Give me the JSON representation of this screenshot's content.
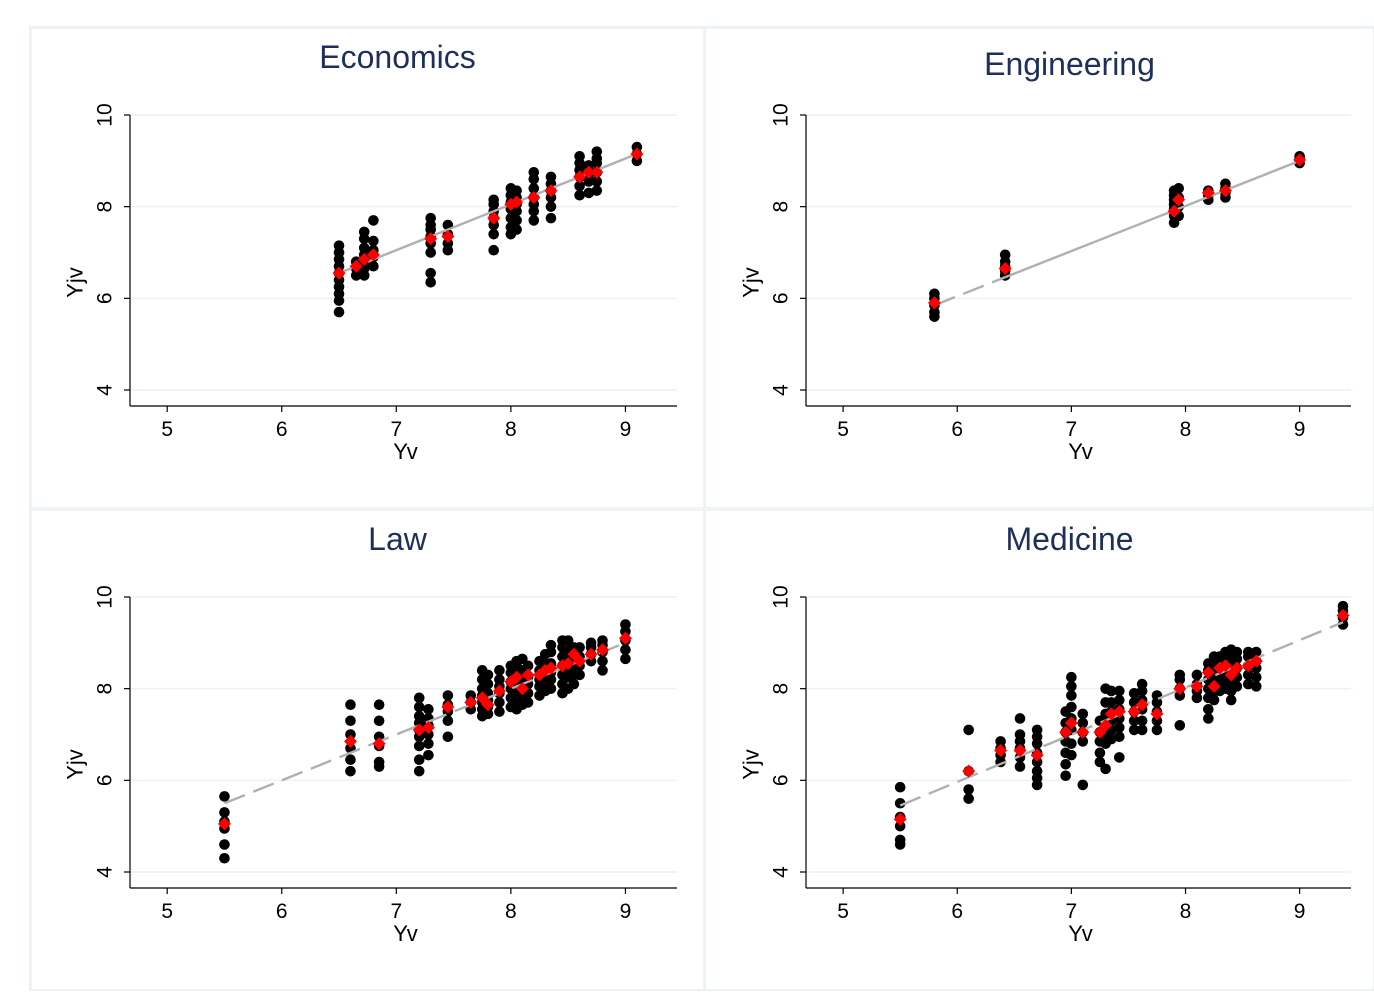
{
  "colors": {
    "page_bg": "#ffffff",
    "panel_border": "#eaf2f3",
    "title": "#1e2f5c",
    "axis": "#000000",
    "grid": "#eaf2f3",
    "observed_point": "#000000",
    "fitted_point": "#ff0000",
    "fit_line": "#b0b0b0"
  },
  "chart_data": [
    {
      "type": "scatter",
      "title": "Economics",
      "xlabel": "Yv",
      "ylabel": "Yjv",
      "xlim": [
        4.85,
        9.45
      ],
      "ylim": [
        3.6,
        10.4
      ],
      "xticks": [
        5,
        6,
        7,
        8,
        9
      ],
      "yticks": [
        4,
        6,
        8,
        10
      ],
      "grid": true,
      "fit_line": {
        "x": [
          6.5,
          9.1
        ],
        "y": [
          6.55,
          9.15
        ],
        "dashed_until": 6.9
      },
      "clusters": [
        {
          "x": 6.5,
          "y": [
            5.7,
            5.95,
            6.1,
            6.25,
            6.4,
            6.55,
            6.7,
            6.85,
            7.0,
            7.15
          ]
        },
        {
          "x": 6.65,
          "y": [
            6.5,
            6.65,
            6.8
          ]
        },
        {
          "x": 6.72,
          "y": [
            6.5,
            6.65,
            6.8,
            6.95,
            7.1,
            7.3,
            7.45
          ]
        },
        {
          "x": 6.8,
          "y": [
            6.7,
            6.9,
            7.05,
            7.25,
            7.7
          ]
        },
        {
          "x": 7.3,
          "y": [
            6.35,
            6.55,
            7.0,
            7.2,
            7.35,
            7.5,
            7.6,
            7.75
          ]
        },
        {
          "x": 7.45,
          "y": [
            7.05,
            7.2,
            7.4,
            7.6
          ]
        },
        {
          "x": 7.85,
          "y": [
            7.05,
            7.4,
            7.6,
            7.75,
            7.9,
            8.05,
            8.15
          ]
        },
        {
          "x": 8.0,
          "y": [
            7.4,
            7.55,
            7.75,
            7.95,
            8.1,
            8.25,
            8.4
          ]
        },
        {
          "x": 8.05,
          "y": [
            7.5,
            7.7,
            7.9,
            8.05,
            8.2,
            8.35
          ]
        },
        {
          "x": 8.2,
          "y": [
            7.7,
            7.9,
            8.05,
            8.2,
            8.4,
            8.6,
            8.75
          ]
        },
        {
          "x": 8.35,
          "y": [
            7.75,
            8.0,
            8.2,
            8.35,
            8.5,
            8.65
          ]
        },
        {
          "x": 8.6,
          "y": [
            8.25,
            8.45,
            8.65,
            8.8,
            8.95,
            9.1
          ]
        },
        {
          "x": 8.68,
          "y": [
            8.3,
            8.55,
            8.7,
            8.9
          ]
        },
        {
          "x": 8.75,
          "y": [
            8.35,
            8.55,
            8.75,
            8.95,
            9.05,
            9.2
          ]
        },
        {
          "x": 9.1,
          "y": [
            9.0,
            9.15,
            9.3
          ]
        }
      ],
      "fitted": [
        {
          "x": 6.5,
          "y": 6.55
        },
        {
          "x": 6.65,
          "y": 6.7
        },
        {
          "x": 6.72,
          "y": 6.85
        },
        {
          "x": 6.8,
          "y": 6.95
        },
        {
          "x": 7.3,
          "y": 7.3
        },
        {
          "x": 7.45,
          "y": 7.35
        },
        {
          "x": 7.85,
          "y": 7.75
        },
        {
          "x": 8.0,
          "y": 8.05
        },
        {
          "x": 8.05,
          "y": 8.1
        },
        {
          "x": 8.2,
          "y": 8.2
        },
        {
          "x": 8.35,
          "y": 8.35
        },
        {
          "x": 8.6,
          "y": 8.65
        },
        {
          "x": 8.68,
          "y": 8.75
        },
        {
          "x": 8.75,
          "y": 8.75
        },
        {
          "x": 9.1,
          "y": 9.15
        }
      ]
    },
    {
      "type": "scatter",
      "title": "Engineering",
      "xlabel": "Yv",
      "ylabel": "Yjv",
      "xlim": [
        4.85,
        9.45
      ],
      "ylim": [
        3.6,
        10.4
      ],
      "xticks": [
        5,
        6,
        7,
        8,
        9
      ],
      "yticks": [
        4,
        6,
        8,
        10
      ],
      "grid": true,
      "fit_line": {
        "x": [
          5.8,
          9.0
        ],
        "y": [
          5.85,
          9.0
        ],
        "dashed_until": 6.45
      },
      "clusters": [
        {
          "x": 5.8,
          "y": [
            5.6,
            5.7,
            5.85,
            6.0,
            6.1
          ]
        },
        {
          "x": 6.42,
          "y": [
            6.5,
            6.6,
            6.7,
            6.8,
            6.95
          ]
        },
        {
          "x": 7.9,
          "y": [
            7.65,
            7.8,
            7.95,
            8.05,
            8.15,
            8.25,
            8.35
          ]
        },
        {
          "x": 7.94,
          "y": [
            7.8,
            8.0,
            8.2,
            8.4
          ]
        },
        {
          "x": 8.2,
          "y": [
            8.15,
            8.25,
            8.35
          ]
        },
        {
          "x": 8.35,
          "y": [
            8.2,
            8.3,
            8.4,
            8.5
          ]
        },
        {
          "x": 9.0,
          "y": [
            8.95,
            9.05,
            9.1
          ]
        }
      ],
      "fitted": [
        {
          "x": 5.8,
          "y": 5.9
        },
        {
          "x": 6.42,
          "y": 6.65
        },
        {
          "x": 7.9,
          "y": 7.9
        },
        {
          "x": 7.94,
          "y": 8.15
        },
        {
          "x": 8.2,
          "y": 8.3
        },
        {
          "x": 8.35,
          "y": 8.35
        },
        {
          "x": 9.0,
          "y": 9.02
        }
      ]
    },
    {
      "type": "scatter",
      "title": "Law",
      "xlabel": "Yv",
      "ylabel": "Yjv",
      "xlim": [
        4.85,
        9.45
      ],
      "ylim": [
        3.6,
        10.4
      ],
      "xticks": [
        5,
        6,
        7,
        8,
        9
      ],
      "yticks": [
        4,
        6,
        8,
        10
      ],
      "grid": true,
      "fit_line": {
        "x": [
          5.5,
          9.0
        ],
        "y": [
          5.5,
          9.0
        ],
        "dashed_until": 9.0
      },
      "clusters": [
        {
          "x": 5.5,
          "y": [
            4.3,
            4.6,
            4.95,
            5.1,
            5.3,
            5.65
          ]
        },
        {
          "x": 6.6,
          "y": [
            6.2,
            6.45,
            6.7,
            7.0,
            7.3,
            7.65
          ]
        },
        {
          "x": 6.85,
          "y": [
            6.3,
            6.4,
            6.75,
            6.95,
            7.3,
            7.65
          ]
        },
        {
          "x": 7.2,
          "y": [
            6.2,
            6.45,
            6.75,
            6.95,
            7.1,
            7.25,
            7.4,
            7.6,
            7.8
          ]
        },
        {
          "x": 7.28,
          "y": [
            6.55,
            6.8,
            7.0,
            7.2,
            7.35,
            7.55
          ]
        },
        {
          "x": 7.45,
          "y": [
            6.95,
            7.3,
            7.5,
            7.65,
            7.85
          ]
        },
        {
          "x": 7.65,
          "y": [
            7.55,
            7.7,
            7.85
          ]
        },
        {
          "x": 7.75,
          "y": [
            7.4,
            7.55,
            7.7,
            7.85,
            8.0,
            8.2,
            8.4
          ]
        },
        {
          "x": 7.8,
          "y": [
            7.45,
            7.6,
            7.75,
            7.9,
            8.1,
            8.3
          ]
        },
        {
          "x": 7.9,
          "y": [
            7.5,
            7.7,
            7.9,
            8.05,
            8.2,
            8.4
          ]
        },
        {
          "x": 8.0,
          "y": [
            7.6,
            7.8,
            8.0,
            8.15,
            8.35,
            8.5
          ]
        },
        {
          "x": 8.05,
          "y": [
            7.55,
            7.75,
            7.9,
            8.1,
            8.3,
            8.5,
            8.6
          ]
        },
        {
          "x": 8.1,
          "y": [
            7.65,
            7.85,
            8.05,
            8.2,
            8.4,
            8.65
          ]
        },
        {
          "x": 8.15,
          "y": [
            7.7,
            7.9,
            8.1,
            8.25,
            8.5
          ]
        },
        {
          "x": 8.25,
          "y": [
            7.85,
            8.05,
            8.2,
            8.4,
            8.6
          ]
        },
        {
          "x": 8.3,
          "y": [
            7.95,
            8.15,
            8.35,
            8.55,
            8.75
          ]
        },
        {
          "x": 8.35,
          "y": [
            8.0,
            8.2,
            8.35,
            8.55,
            8.8,
            8.95
          ]
        },
        {
          "x": 8.45,
          "y": [
            7.9,
            8.1,
            8.3,
            8.5,
            8.7,
            8.9,
            9.05
          ]
        },
        {
          "x": 8.5,
          "y": [
            8.0,
            8.25,
            8.45,
            8.65,
            8.85,
            9.05
          ]
        },
        {
          "x": 8.55,
          "y": [
            8.1,
            8.3,
            8.5,
            8.7,
            8.9
          ]
        },
        {
          "x": 8.6,
          "y": [
            8.3,
            8.5,
            8.7,
            8.9
          ]
        },
        {
          "x": 8.7,
          "y": [
            8.6,
            8.75,
            8.9,
            9.0
          ]
        },
        {
          "x": 8.8,
          "y": [
            8.4,
            8.6,
            8.8,
            8.95,
            9.05
          ]
        },
        {
          "x": 9.0,
          "y": [
            8.65,
            8.85,
            9.05,
            9.25,
            9.4
          ]
        }
      ],
      "fitted": [
        {
          "x": 5.5,
          "y": 5.05
        },
        {
          "x": 6.6,
          "y": 6.85
        },
        {
          "x": 6.85,
          "y": 6.8
        },
        {
          "x": 7.2,
          "y": 7.1
        },
        {
          "x": 7.28,
          "y": 7.15
        },
        {
          "x": 7.45,
          "y": 7.6
        },
        {
          "x": 7.65,
          "y": 7.7
        },
        {
          "x": 7.75,
          "y": 7.8
        },
        {
          "x": 7.8,
          "y": 7.65
        },
        {
          "x": 7.9,
          "y": 7.95
        },
        {
          "x": 8.0,
          "y": 8.15
        },
        {
          "x": 8.05,
          "y": 8.25
        },
        {
          "x": 8.1,
          "y": 8.0
        },
        {
          "x": 8.15,
          "y": 8.3
        },
        {
          "x": 8.25,
          "y": 8.3
        },
        {
          "x": 8.3,
          "y": 8.4
        },
        {
          "x": 8.35,
          "y": 8.45
        },
        {
          "x": 8.45,
          "y": 8.5
        },
        {
          "x": 8.5,
          "y": 8.55
        },
        {
          "x": 8.55,
          "y": 8.75
        },
        {
          "x": 8.6,
          "y": 8.6
        },
        {
          "x": 8.7,
          "y": 8.75
        },
        {
          "x": 8.8,
          "y": 8.85
        },
        {
          "x": 9.0,
          "y": 9.1
        }
      ]
    },
    {
      "type": "scatter",
      "title": "Medicine",
      "xlabel": "Yv",
      "ylabel": "Yjv",
      "xlim": [
        4.85,
        9.45
      ],
      "ylim": [
        3.6,
        10.4
      ],
      "xticks": [
        5,
        6,
        7,
        8,
        9
      ],
      "yticks": [
        4,
        6,
        8,
        10
      ],
      "grid": true,
      "fit_line": {
        "x": [
          5.5,
          9.38
        ],
        "y": [
          5.45,
          9.45
        ],
        "dashed_until": 9.38
      },
      "clusters": [
        {
          "x": 5.5,
          "y": [
            4.6,
            4.7,
            5.0,
            5.2,
            5.5,
            5.85
          ]
        },
        {
          "x": 6.1,
          "y": [
            5.6,
            5.8,
            6.2,
            7.1
          ]
        },
        {
          "x": 6.38,
          "y": [
            6.4,
            6.55,
            6.7,
            6.85
          ]
        },
        {
          "x": 6.55,
          "y": [
            6.3,
            6.5,
            6.7,
            6.85,
            7.0,
            7.35
          ]
        },
        {
          "x": 6.7,
          "y": [
            5.9,
            6.05,
            6.2,
            6.4,
            6.6,
            6.8,
            6.95,
            7.1
          ]
        },
        {
          "x": 6.95,
          "y": [
            6.1,
            6.35,
            6.6,
            6.85,
            7.05,
            7.25,
            7.5
          ]
        },
        {
          "x": 7.0,
          "y": [
            6.55,
            6.8,
            7.1,
            7.35,
            7.6,
            7.85,
            8.05,
            8.25
          ]
        },
        {
          "x": 7.1,
          "y": [
            5.9,
            6.85,
            7.05,
            7.25,
            7.45
          ]
        },
        {
          "x": 7.25,
          "y": [
            6.4,
            6.6,
            6.85,
            7.05,
            7.3
          ]
        },
        {
          "x": 7.3,
          "y": [
            6.25,
            6.8,
            7.0,
            7.2,
            7.45,
            7.7,
            8.0
          ]
        },
        {
          "x": 7.35,
          "y": [
            6.9,
            7.1,
            7.3,
            7.5,
            7.7,
            7.95
          ]
        },
        {
          "x": 7.42,
          "y": [
            6.5,
            6.95,
            7.15,
            7.35,
            7.55,
            7.75,
            7.95
          ]
        },
        {
          "x": 7.55,
          "y": [
            7.1,
            7.3,
            7.5,
            7.7,
            7.9
          ]
        },
        {
          "x": 7.62,
          "y": [
            7.1,
            7.3,
            7.55,
            7.75,
            7.95,
            8.1
          ]
        },
        {
          "x": 7.75,
          "y": [
            7.1,
            7.3,
            7.5,
            7.7,
            7.85
          ]
        },
        {
          "x": 7.95,
          "y": [
            7.2,
            7.85,
            8.0,
            8.2,
            8.3
          ]
        },
        {
          "x": 8.1,
          "y": [
            7.8,
            7.95,
            8.1,
            8.3
          ]
        },
        {
          "x": 8.2,
          "y": [
            7.35,
            7.55,
            7.8,
            8.0,
            8.2,
            8.4,
            8.55
          ]
        },
        {
          "x": 8.25,
          "y": [
            7.75,
            7.95,
            8.15,
            8.35,
            8.55,
            8.7
          ]
        },
        {
          "x": 8.3,
          "y": [
            7.95,
            8.15,
            8.3,
            8.5,
            8.7
          ]
        },
        {
          "x": 8.35,
          "y": [
            8.0,
            8.2,
            8.4,
            8.6,
            8.8
          ]
        },
        {
          "x": 8.4,
          "y": [
            7.75,
            7.95,
            8.15,
            8.35,
            8.55,
            8.75,
            8.85
          ]
        },
        {
          "x": 8.45,
          "y": [
            8.05,
            8.25,
            8.45,
            8.65,
            8.8
          ]
        },
        {
          "x": 8.55,
          "y": [
            8.1,
            8.3,
            8.5,
            8.7,
            8.8
          ]
        },
        {
          "x": 8.62,
          "y": [
            8.05,
            8.25,
            8.45,
            8.6,
            8.8
          ]
        },
        {
          "x": 9.38,
          "y": [
            9.4,
            9.55,
            9.7,
            9.8
          ]
        }
      ],
      "fitted": [
        {
          "x": 5.5,
          "y": 5.15
        },
        {
          "x": 6.1,
          "y": 6.2
        },
        {
          "x": 6.38,
          "y": 6.65
        },
        {
          "x": 6.55,
          "y": 6.65
        },
        {
          "x": 6.7,
          "y": 6.55
        },
        {
          "x": 6.95,
          "y": 7.05
        },
        {
          "x": 7.0,
          "y": 7.25
        },
        {
          "x": 7.1,
          "y": 7.05
        },
        {
          "x": 7.25,
          "y": 7.05
        },
        {
          "x": 7.3,
          "y": 7.2
        },
        {
          "x": 7.35,
          "y": 7.45
        },
        {
          "x": 7.42,
          "y": 7.5
        },
        {
          "x": 7.55,
          "y": 7.5
        },
        {
          "x": 7.62,
          "y": 7.65
        },
        {
          "x": 7.75,
          "y": 7.45
        },
        {
          "x": 7.95,
          "y": 8.0
        },
        {
          "x": 8.1,
          "y": 8.05
        },
        {
          "x": 8.2,
          "y": 8.35
        },
        {
          "x": 8.25,
          "y": 8.05
        },
        {
          "x": 8.3,
          "y": 8.45
        },
        {
          "x": 8.35,
          "y": 8.5
        },
        {
          "x": 8.4,
          "y": 8.3
        },
        {
          "x": 8.45,
          "y": 8.45
        },
        {
          "x": 8.55,
          "y": 8.5
        },
        {
          "x": 8.62,
          "y": 8.6
        },
        {
          "x": 9.38,
          "y": 9.6
        }
      ]
    }
  ]
}
